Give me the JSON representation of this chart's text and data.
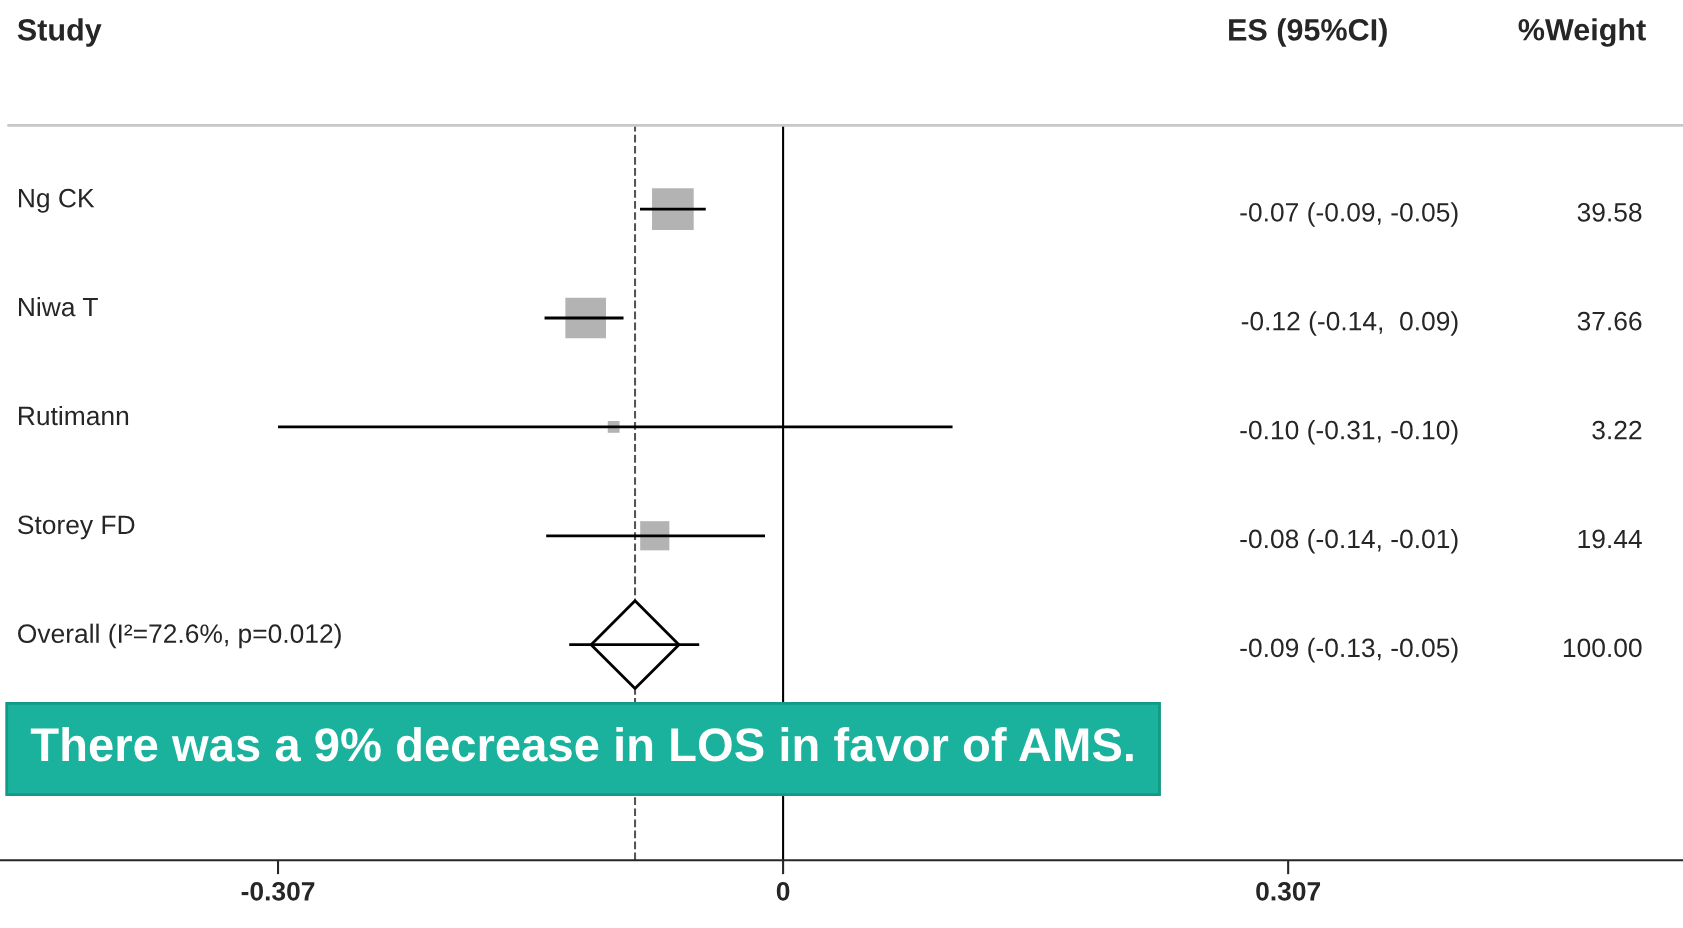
{
  "chart_data": {
    "type": "bubble",
    "orientation": "horizontal",
    "ylabel": "Study",
    "categories": [
      "Ng CK",
      "Niwa T",
      "Rutimann",
      "Storey FD",
      "Overall (I²=72.6%, p=0.012)"
    ],
    "series": [
      {
        "color": "#b3b3b3",
        "marker": "square",
        "values": [
          -0.067,
          -0.12,
          -0.103,
          -0.078,
          null
        ],
        "sizes": [
          1,
          0.95,
          0.08,
          0.49,
          null
        ],
        "errors": [
          [
            -0.087,
            -0.047
          ],
          [
            -0.145,
            -0.097
          ],
          [
            -0.307,
            0.103
          ],
          [
            -0.144,
            -0.011
          ],
          null
        ]
      },
      {
        "type": "scatter",
        "color": "#ffffff",
        "marker": "diamond",
        "values": [
          null,
          null,
          null,
          null,
          -0.09
        ],
        "errors": [
          null,
          null,
          null,
          null,
          [
            -0.13,
            -0.051
          ]
        ]
      }
    ],
    "xlim": [
      -0.476,
      0.547
    ],
    "xticks": [
      -0.307,
      0,
      0.307
    ],
    "ref_lines": [
      {
        "axis": "x",
        "value": 0,
        "line_style": "solid",
        "color": "#000000"
      },
      {
        "axis": "x",
        "value": -0.09,
        "line_style": "dashed",
        "color": "#555555"
      }
    ],
    "grid": false,
    "legend": false,
    "annotations": [
      "ES (95%CI)",
      "%Weight",
      "There was a 9% decrease in LOS in favor of AMS.",
      "-0.07 (-0.09, -0.05)",
      "-0.12 (-0.14,  0.09)",
      "-0.10 (-0.31, -0.10)",
      "-0.08 (-0.14, -0.01)",
      "-0.09 (-0.13, -0.05)",
      "39.58",
      "37.66",
      "3.22",
      "19.44",
      "100.00"
    ]
  }
}
